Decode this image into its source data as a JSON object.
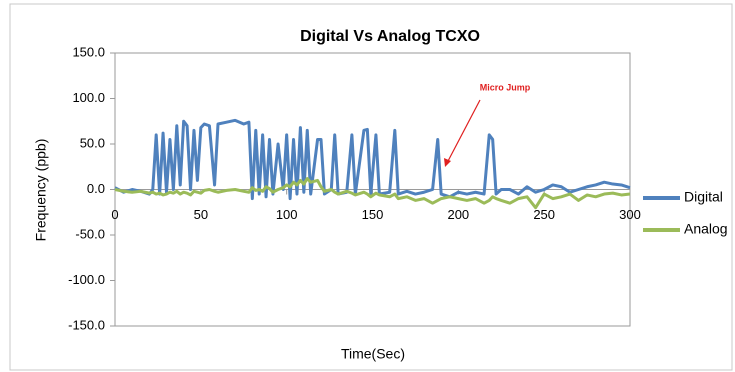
{
  "chart_data": {
    "type": "line",
    "title": "Digital Vs Analog TCXO",
    "xlabel": "Time(Sec)",
    "ylabel": "Frequency (ppb)",
    "annotation": "Micro Jump",
    "x": [
      0,
      5,
      10,
      15,
      20,
      22,
      24,
      26,
      28,
      30,
      32,
      34,
      36,
      38,
      40,
      42,
      44,
      46,
      48,
      50,
      52,
      55,
      58,
      60,
      65,
      70,
      75,
      78,
      80,
      82,
      84,
      86,
      88,
      90,
      92,
      95,
      98,
      100,
      102,
      104,
      106,
      108,
      110,
      112,
      114,
      118,
      120,
      122,
      126,
      128,
      130,
      135,
      138,
      140,
      145,
      147,
      149,
      152,
      154,
      160,
      163,
      165,
      170,
      175,
      180,
      185,
      188,
      190,
      195,
      200,
      205,
      210,
      215,
      218,
      220,
      222,
      225,
      230,
      235,
      240,
      245,
      250,
      255,
      260,
      265,
      270,
      275,
      280,
      285,
      290,
      295,
      300
    ],
    "series": [
      {
        "name": "Digital",
        "color": "#4f81bd",
        "values": [
          2,
          -3,
          0,
          -2,
          -5,
          0,
          60,
          -5,
          62,
          -3,
          55,
          0,
          70,
          5,
          75,
          70,
          0,
          65,
          10,
          68,
          72,
          70,
          5,
          72,
          74,
          76,
          72,
          74,
          -10,
          65,
          -5,
          60,
          -8,
          55,
          -5,
          50,
          0,
          60,
          -10,
          55,
          -5,
          68,
          -3,
          65,
          -5,
          55,
          55,
          -5,
          0,
          60,
          -5,
          -3,
          60,
          -5,
          65,
          66,
          -5,
          60,
          -5,
          -3,
          65,
          -5,
          -2,
          -5,
          -3,
          0,
          55,
          -5,
          -8,
          -3,
          -5,
          -3,
          -5,
          60,
          55,
          -5,
          0,
          0,
          -5,
          3,
          -3,
          0,
          5,
          3,
          -3,
          0,
          3,
          5,
          8,
          6,
          5,
          2
        ]
      },
      {
        "name": "Analog",
        "color": "#9bbb59",
        "values": [
          0,
          -2,
          -3,
          -2,
          -4,
          -3,
          -5,
          -4,
          -6,
          -5,
          -3,
          -4,
          -2,
          -5,
          -3,
          -4,
          -6,
          -2,
          -3,
          -4,
          -1,
          0,
          -2,
          -3,
          -1,
          0,
          -2,
          -3,
          2,
          -1,
          0,
          -2,
          3,
          1,
          -3,
          0,
          2,
          5,
          3,
          8,
          5,
          10,
          6,
          12,
          8,
          10,
          3,
          -2,
          0,
          -3,
          -5,
          -2,
          -4,
          -6,
          -3,
          -5,
          -8,
          -4,
          -6,
          -8,
          -5,
          -10,
          -8,
          -12,
          -10,
          -15,
          -12,
          -10,
          -8,
          -10,
          -12,
          -10,
          -15,
          -12,
          -8,
          -10,
          -12,
          -15,
          -10,
          -8,
          -20,
          -5,
          -10,
          -8,
          -5,
          -12,
          -6,
          -8,
          -5,
          -4,
          -6,
          -5
        ]
      }
    ],
    "xlim": [
      0,
      300
    ],
    "xticks": [
      0,
      50,
      100,
      150,
      200,
      250,
      300
    ],
    "ylim": [
      -150,
      150
    ],
    "yticks": [
      {
        "value": 150,
        "label": "150.0"
      },
      {
        "value": 100,
        "label": "100.0"
      },
      {
        "value": 50,
        "label": "50.0"
      },
      {
        "value": 0,
        "label": "0.0"
      },
      {
        "value": -50,
        "label": "-50.0"
      },
      {
        "value": -100,
        "label": "-100.0"
      },
      {
        "value": -150,
        "label": "-150.0"
      }
    ],
    "grid": false,
    "legend": "right"
  }
}
